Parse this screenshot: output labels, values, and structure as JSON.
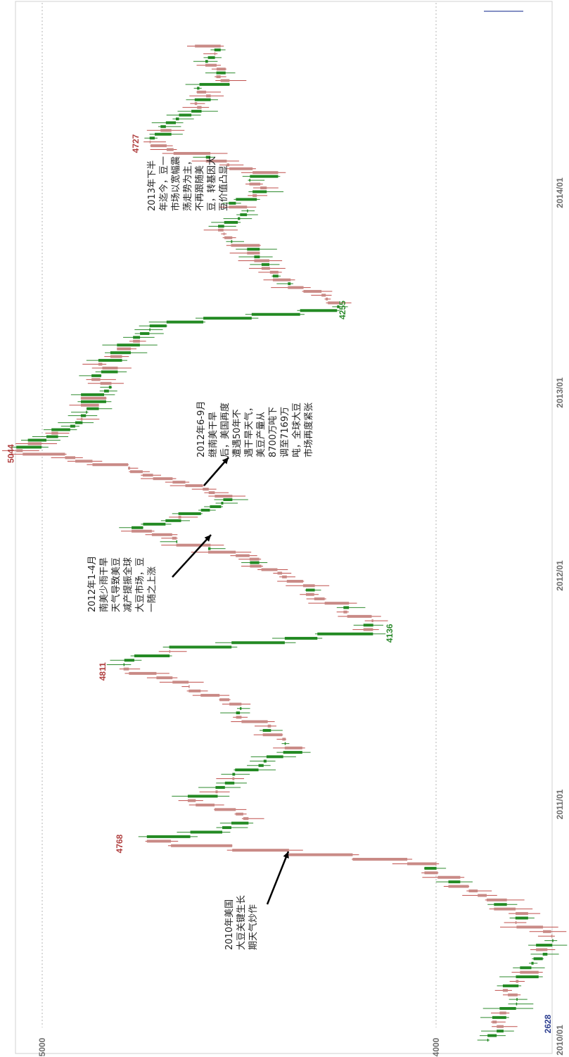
{
  "chart_data": {
    "type": "candlestick",
    "title": "",
    "xlabel": "",
    "ylabel": "",
    "orientation": "rotated-90-ccw",
    "colors": {
      "up": "#c0504d",
      "down": "#2e8b2e",
      "up_body": "#c98a86",
      "down_body": "#238a23",
      "grid": "#b4b4b4"
    },
    "y_ticks": [
      "5000",
      "4000"
    ],
    "x_ticks": [
      "2010/01",
      "2011/01",
      "2012/01",
      "2013/01",
      "2014/01"
    ],
    "price_labels": [
      "4768",
      "4811",
      "4136",
      "5044",
      "4255",
      "4727",
      "2628"
    ],
    "annotations": [
      {
        "lines": [
          "2010年美国",
          "大豆关键生长",
          "期天气炒作"
        ]
      },
      {
        "lines": [
          "2012年1-4月",
          "南美少雨干旱",
          "天气导致美豆",
          "减产提振全球",
          "大豆市场，豆",
          "一随之上涨"
        ]
      },
      {
        "lines": [
          "2012年6-9月",
          "继南美干旱",
          "后，美国再度",
          "遭遇50年不",
          "遇干旱天气，",
          "美豆产量从",
          "8700万吨下",
          "调至7169万",
          "吨，全球大豆",
          "市场再度紧张"
        ]
      },
      {
        "lines": [
          "2013年下半",
          "年迄今，豆一",
          "市场以宽幅震",
          "荡走势为主，",
          "不再跟随美",
          "豆，转基因大",
          "豆价值凸显"
        ]
      }
    ],
    "anchors": [
      {
        "date": "2010-01",
        "value": 3870
      },
      {
        "date": "2010-03",
        "value": 3820
      },
      {
        "date": "2010-06",
        "value": 3700
      },
      {
        "date": "2010-08",
        "value": 3860
      },
      {
        "date": "2010-10",
        "value": 4050
      },
      {
        "date": "2010-11",
        "value": 4768
      },
      {
        "date": "2010-12",
        "value": 4450
      },
      {
        "date": "2011-01",
        "value": 4620
      },
      {
        "date": "2011-04",
        "value": 4350
      },
      {
        "date": "2011-07",
        "value": 4600
      },
      {
        "date": "2011-08",
        "value": 4811
      },
      {
        "date": "2011-09",
        "value": 4680
      },
      {
        "date": "2011-10",
        "value": 4136
      },
      {
        "date": "2011-12",
        "value": 4300
      },
      {
        "date": "2012-02",
        "value": 4500
      },
      {
        "date": "2012-04",
        "value": 4750
      },
      {
        "date": "2012-06",
        "value": 4520
      },
      {
        "date": "2012-08",
        "value": 4780
      },
      {
        "date": "2012-09",
        "value": 5044
      },
      {
        "date": "2012-12",
        "value": 4880
      },
      {
        "date": "2013-03",
        "value": 4820
      },
      {
        "date": "2013-05",
        "value": 4700
      },
      {
        "date": "2013-06",
        "value": 4255
      },
      {
        "date": "2013-08",
        "value": 4400
      },
      {
        "date": "2013-11",
        "value": 4540
      },
      {
        "date": "2014-02",
        "value": 4430
      },
      {
        "date": "2014-04",
        "value": 4727
      },
      {
        "date": "2014-06",
        "value": 4620
      },
      {
        "date": "2014-08",
        "value": 4540
      },
      {
        "date": "2014-09",
        "value": 4580
      }
    ],
    "ylim": [
      3700,
      5100
    ],
    "grid": true,
    "legend": "none"
  }
}
